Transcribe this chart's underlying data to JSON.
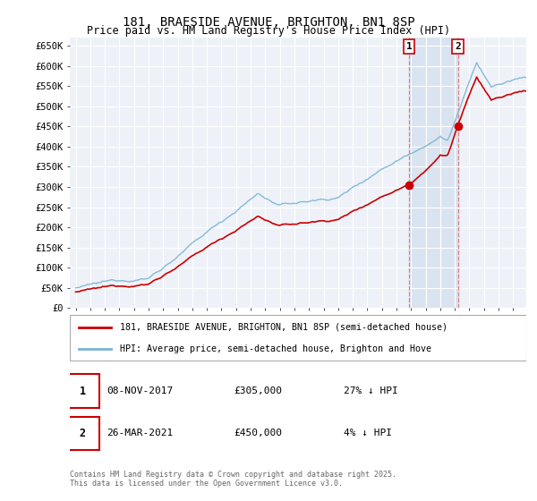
{
  "title": "181, BRAESIDE AVENUE, BRIGHTON, BN1 8SP",
  "subtitle": "Price paid vs. HM Land Registry's House Price Index (HPI)",
  "ylabel_ticks": [
    "£0",
    "£50K",
    "£100K",
    "£150K",
    "£200K",
    "£250K",
    "£300K",
    "£350K",
    "£400K",
    "£450K",
    "£500K",
    "£550K",
    "£600K",
    "£650K"
  ],
  "ytick_values": [
    0,
    50000,
    100000,
    150000,
    200000,
    250000,
    300000,
    350000,
    400000,
    450000,
    500000,
    550000,
    600000,
    650000
  ],
  "x_start_year": 1995,
  "x_end_year": 2025,
  "hpi_color": "#7ab3d4",
  "price_color": "#cc0000",
  "sale1_year": 2017.875,
  "sale1_price": 305000,
  "sale2_year": 2021.208,
  "sale2_price": 450000,
  "legend_line1": "181, BRAESIDE AVENUE, BRIGHTON, BN1 8SP (semi-detached house)",
  "legend_line2": "HPI: Average price, semi-detached house, Brighton and Hove",
  "annotation1_label": "1",
  "annotation1_date": "08-NOV-2017",
  "annotation1_price": "£305,000",
  "annotation1_hpi": "27% ↓ HPI",
  "annotation2_label": "2",
  "annotation2_date": "26-MAR-2021",
  "annotation2_price": "£450,000",
  "annotation2_hpi": "4% ↓ HPI",
  "footer": "Contains HM Land Registry data © Crown copyright and database right 2025.\nThis data is licensed under the Open Government Licence v3.0.",
  "bg_color": "#ffffff",
  "plot_bg_color": "#eef2f8",
  "grid_color": "#ffffff",
  "shade_color": "#c8d8ec",
  "shade_alpha": 0.5
}
